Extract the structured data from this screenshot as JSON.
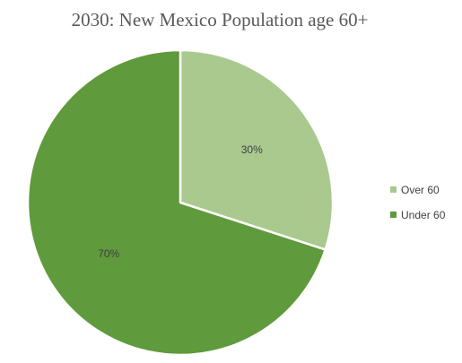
{
  "chart_data": {
    "type": "pie",
    "title": "2030:  New Mexico Population age 60+",
    "categories": [
      "Over 60",
      "Under 60"
    ],
    "values": [
      30,
      70
    ],
    "data_labels": [
      "30%",
      "70%"
    ],
    "colors": [
      "#a9c98f",
      "#5f9a3c"
    ],
    "slice_border_color": "#ffffff",
    "start_angle_deg": 0,
    "direction": "clockwise",
    "legend": {
      "placement": "right",
      "entries": [
        "Over 60",
        "Under 60"
      ]
    }
  }
}
